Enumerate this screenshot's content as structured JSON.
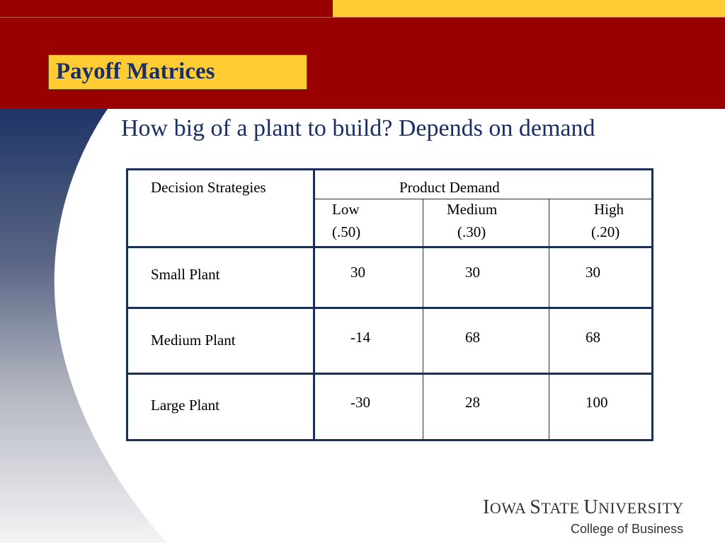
{
  "slide": {
    "title": "Payoff Matrices",
    "subtitle": "How big of a plant to build?  Depends on demand"
  },
  "table": {
    "strategy_header": "Decision Strategies",
    "demand_header": "Product Demand",
    "columns": [
      {
        "label": "Low",
        "probability": "(.50)"
      },
      {
        "label": "Medium",
        "probability": "(.30)"
      },
      {
        "label": "High",
        "probability": "(.20)"
      }
    ],
    "rows": [
      {
        "strategy": "Small Plant",
        "payoffs": [
          "30",
          "30",
          "30"
        ]
      },
      {
        "strategy": "Medium Plant",
        "payoffs": [
          "-14",
          "68",
          "68"
        ]
      },
      {
        "strategy": "Large Plant",
        "payoffs": [
          "-30",
          "28",
          "100"
        ]
      }
    ]
  },
  "logo": {
    "university_lines": [
      "I",
      "OWA ",
      "S",
      "TATE ",
      "U",
      "NIVERSITY"
    ],
    "college": "College of Business"
  },
  "colors": {
    "banner_red": "#990000",
    "accent_gold": "#FFCC33",
    "navy_text": "#1a2f66",
    "table_line": "#1a2f55"
  }
}
